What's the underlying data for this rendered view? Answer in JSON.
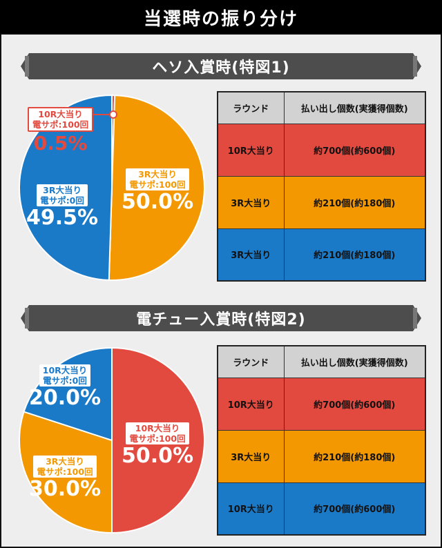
{
  "title": "当選時の振り分け",
  "sections": [
    {
      "banner": "ヘソ入賞時(特図1)",
      "chart_data": {
        "type": "pie",
        "slices": [
          {
            "label_line1": "10R大当り",
            "label_line2": "電サポ:100回",
            "percent_text": "0.5%",
            "value": 0.5,
            "color": "#e34a3f"
          },
          {
            "label_line1": "3R大当り",
            "label_line2": "電サポ:100回",
            "percent_text": "50.0%",
            "value": 50.0,
            "color": "#f39800"
          },
          {
            "label_line1": "3R大当り",
            "label_line2": "電サポ:0回",
            "percent_text": "49.5%",
            "value": 49.5,
            "color": "#1b7ac8"
          }
        ]
      },
      "table": {
        "headers": [
          "ラウンド",
          "払い出し個数(実獲得個数)"
        ],
        "rows": [
          {
            "round": "10R大当り",
            "payout": "約700個(約600個)",
            "color": "#e34a3f"
          },
          {
            "round": "3R大当り",
            "payout": "約210個(約180個)",
            "color": "#f39800"
          },
          {
            "round": "3R大当り",
            "payout": "約210個(約180個)",
            "color": "#1b7ac8"
          }
        ]
      }
    },
    {
      "banner": "電チュー入賞時(特図2)",
      "chart_data": {
        "type": "pie",
        "slices": [
          {
            "label_line1": "10R大当り",
            "label_line2": "電サポ:100回",
            "percent_text": "50.0%",
            "value": 50.0,
            "color": "#e34a3f"
          },
          {
            "label_line1": "3R大当り",
            "label_line2": "電サポ:100回",
            "percent_text": "30.0%",
            "value": 30.0,
            "color": "#f39800"
          },
          {
            "label_line1": "10R大当り",
            "label_line2": "電サポ:0回",
            "percent_text": "20.0%",
            "value": 20.0,
            "color": "#1b7ac8"
          }
        ]
      },
      "table": {
        "headers": [
          "ラウンド",
          "払い出し個数(実獲得個数)"
        ],
        "rows": [
          {
            "round": "10R大当り",
            "payout": "約700個(約600個)",
            "color": "#e34a3f"
          },
          {
            "round": "3R大当り",
            "payout": "約210個(約180個)",
            "color": "#f39800"
          },
          {
            "round": "10R大当り",
            "payout": "約700個(約600個)",
            "color": "#1b7ac8"
          }
        ]
      }
    }
  ]
}
